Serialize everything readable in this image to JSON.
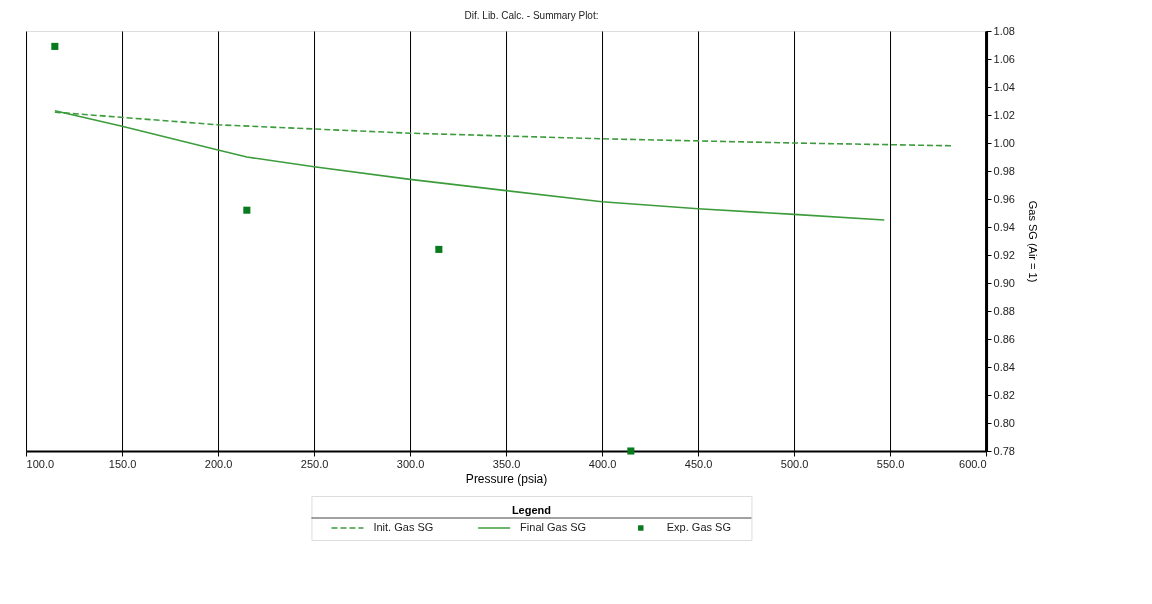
{
  "chart_data": {
    "type": "line",
    "title": "Dif. Lib. Calc. - Summary Plot:",
    "xlabel": "Pressure (psia)",
    "ylabel": "Gas SG (Air = 1)",
    "xlim": [
      100,
      600
    ],
    "xticks": [
      {
        "value": 100,
        "label": "100.0"
      },
      {
        "value": 150,
        "label": "150.0"
      },
      {
        "value": 200,
        "label": "200.0"
      },
      {
        "value": 250,
        "label": "250.0"
      },
      {
        "value": 300,
        "label": "300.0"
      },
      {
        "value": 350,
        "label": "350.0"
      },
      {
        "value": 400,
        "label": "400.0"
      },
      {
        "value": 450,
        "label": "450.0"
      },
      {
        "value": 500,
        "label": "500.0"
      },
      {
        "value": 550,
        "label": "550.0"
      },
      {
        "value": 600,
        "label": "600.0"
      }
    ],
    "ylim": [
      0.78,
      1.08
    ],
    "yticks": [
      {
        "value": 0.78,
        "label": "0.78"
      },
      {
        "value": 0.8,
        "label": "0.80"
      },
      {
        "value": 0.82,
        "label": "0.82"
      },
      {
        "value": 0.84,
        "label": "0.84"
      },
      {
        "value": 0.86,
        "label": "0.86"
      },
      {
        "value": 0.88,
        "label": "0.88"
      },
      {
        "value": 0.9,
        "label": "0.90"
      },
      {
        "value": 0.92,
        "label": "0.92"
      },
      {
        "value": 0.94,
        "label": "0.94"
      },
      {
        "value": 0.96,
        "label": "0.96"
      },
      {
        "value": 0.98,
        "label": "0.98"
      },
      {
        "value": 1.0,
        "label": "1.00"
      },
      {
        "value": 1.02,
        "label": "1.02"
      },
      {
        "value": 1.04,
        "label": "1.04"
      },
      {
        "value": 1.06,
        "label": "1.06"
      },
      {
        "value": 1.08,
        "label": "1.08"
      }
    ],
    "grid": "x",
    "legend": "bottom",
    "legend_title": "Legend",
    "series": [
      {
        "name": "Init. Gas SG",
        "line_style": "dashed",
        "color": "#3c9c3c",
        "x": [
          115,
          200,
          300,
          400,
          500,
          583
        ],
        "values": [
          1.022,
          1.013,
          1.007,
          1.003,
          1.0,
          0.998
        ]
      },
      {
        "name": "Final Gas SG",
        "line_style": "solid",
        "color": "#3c9c3c",
        "x": [
          115,
          150,
          200,
          215,
          250,
          300,
          350,
          400,
          450,
          500,
          547
        ],
        "values": [
          1.023,
          1.012,
          0.995,
          0.99,
          0.983,
          0.974,
          0.966,
          0.958,
          0.953,
          0.949,
          0.945
        ]
      },
      {
        "name": "Exp. Gas SG",
        "type": "scatter",
        "marker": "square",
        "color": "#0a7a1e",
        "x": [
          115,
          215,
          315,
          415
        ],
        "values": [
          1.069,
          0.952,
          0.924,
          0.78
        ]
      }
    ]
  }
}
